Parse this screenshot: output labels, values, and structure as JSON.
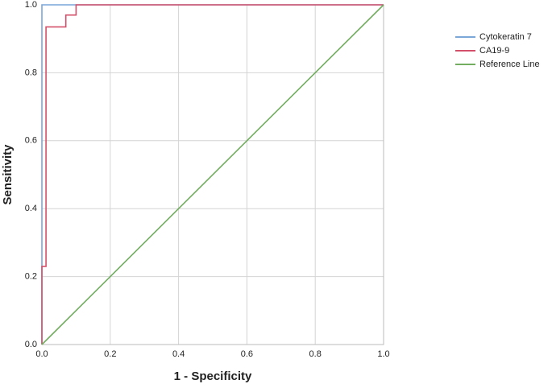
{
  "chart_data": {
    "type": "line",
    "xlabel": "1 - Specificity",
    "ylabel": "Sensitivity",
    "xlim": [
      0,
      1
    ],
    "ylim": [
      0,
      1
    ],
    "xticks": [
      {
        "value": 0,
        "label": "0.0"
      },
      0.2,
      0.4,
      0.6,
      0.8,
      {
        "value": 1,
        "label": "1.0"
      }
    ],
    "yticks": [
      {
        "value": 0,
        "label": "0.0"
      },
      0.2,
      0.4,
      0.6,
      0.8,
      {
        "value": 1,
        "label": "1.0"
      }
    ],
    "grid": true,
    "legend": "right",
    "series": [
      {
        "name": "Cytokeratin 7",
        "color": "#7aa6d8",
        "x": [
          0,
          0,
          1
        ],
        "values": [
          0,
          1,
          1
        ]
      },
      {
        "name": "CA19-9",
        "color": "#d4506a",
        "x": [
          0,
          0,
          0.012,
          0.012,
          0.07,
          0.07,
          0.1,
          0.1,
          1
        ],
        "values": [
          0,
          0.23,
          0.23,
          0.935,
          0.935,
          0.97,
          0.97,
          1,
          1
        ]
      },
      {
        "name": "Reference Line",
        "color": "#72ad60",
        "x": [
          0,
          1
        ],
        "values": [
          0,
          1
        ]
      }
    ]
  }
}
